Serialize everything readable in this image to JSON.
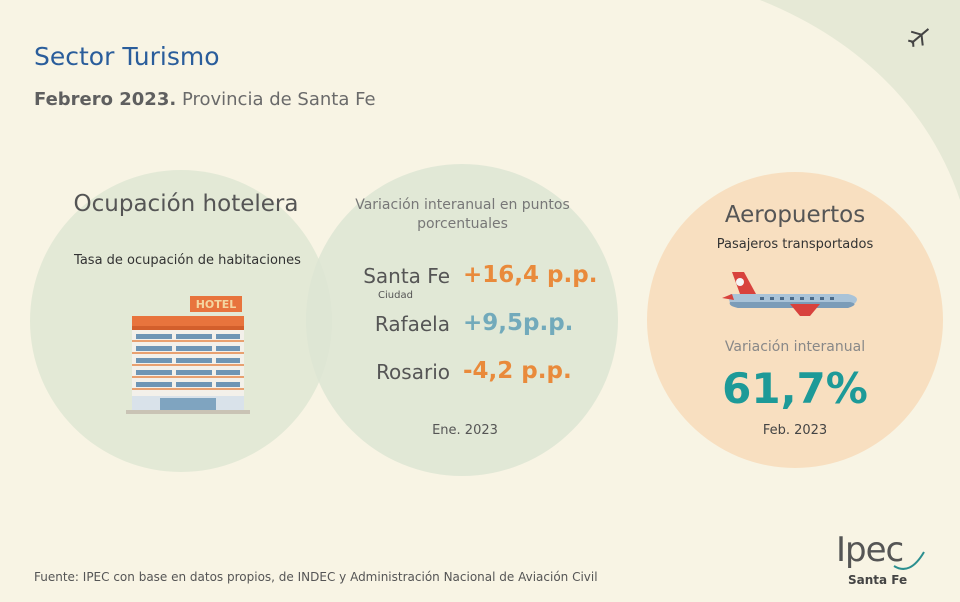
{
  "header": {
    "title": "Sector Turismo",
    "subtitle_bold": "Febrero 2023.",
    "subtitle": "Provincia de Santa Fe"
  },
  "hotel": {
    "title": "Ocupación hotelera",
    "subtitle": "Tasa de ocupación de habitaciones",
    "sign": "HOTEL"
  },
  "variation": {
    "title": "Variación interanual en puntos porcentuales",
    "rows": [
      {
        "place": "Santa Fe",
        "note": "Ciudad",
        "value": "+16,4 p.p."
      },
      {
        "place": "Rafaela",
        "value": "+9,5p.p."
      },
      {
        "place": "Rosario",
        "value": "-4,2 p.p."
      }
    ],
    "period": "Ene. 2023"
  },
  "airports": {
    "title": "Aeropuertos",
    "subtitle": "Pasajeros transportados",
    "variation_label": "Variación interanual",
    "value": "61,7%",
    "period": "Feb. 2023"
  },
  "footer": {
    "source": "Fuente: IPEC con base en datos propios, de INDEC y  Administración Nacional de Aviación Civil"
  },
  "logo": {
    "name": "Ipec",
    "region": "Santa Fe"
  }
}
